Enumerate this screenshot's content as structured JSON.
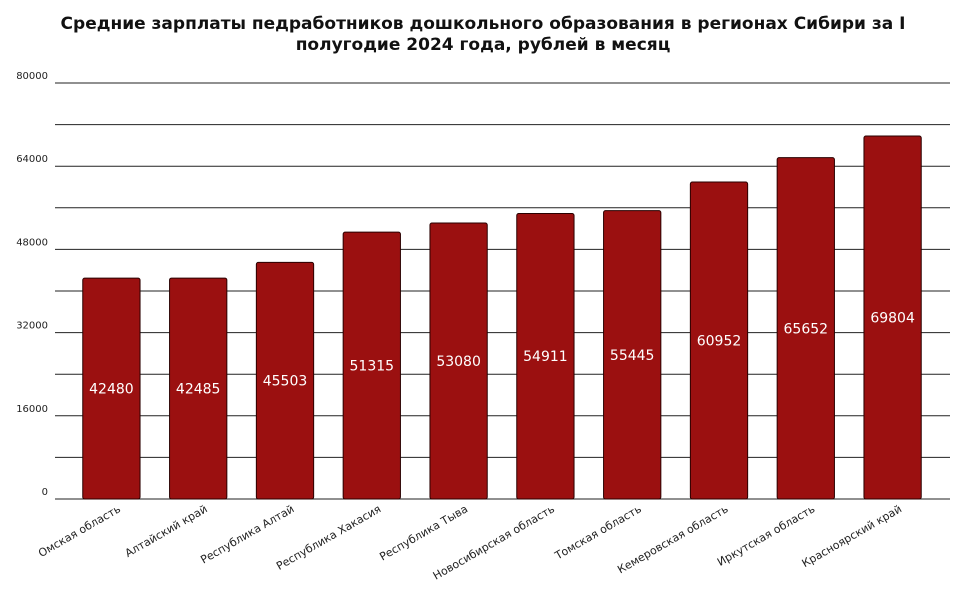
{
  "chart_data": {
    "type": "bar",
    "title": "Средние зарплаты педработников дошкольного образования в регионах Сибири за I полугодие 2024 года, рублей в месяц",
    "xlabel": "",
    "ylabel": "",
    "categories": [
      "Омская область",
      "Алтайский край",
      "Республика Алтай",
      "Республика Хакасия",
      "Республика Тыва",
      "Новосибирская область",
      "Томская область",
      "Кемеровская область",
      "Иркутская область",
      "Красноярский край"
    ],
    "values": [
      42480,
      42485,
      45503,
      51315,
      53080,
      54911,
      55445,
      60952,
      65652,
      69804
    ],
    "ylim": [
      0,
      80000
    ],
    "yticks": [
      0,
      16000,
      32000,
      48000,
      64000,
      80000
    ],
    "grid": true,
    "legend": "none",
    "colors": {
      "bar": "#9b1010",
      "bar_edge": "#2a0000",
      "gridline": "#222222"
    }
  }
}
